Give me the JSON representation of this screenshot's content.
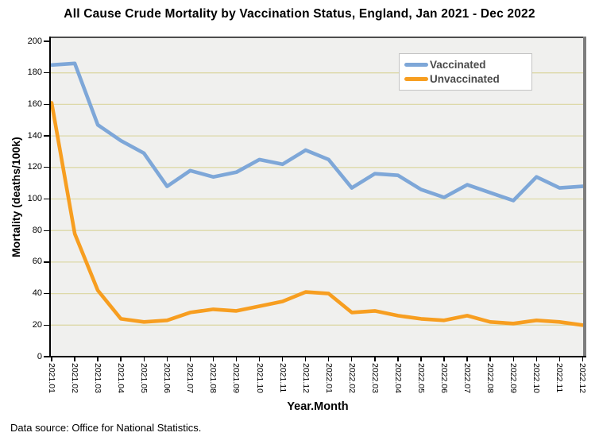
{
  "title": "All Cause Crude Mortality by Vaccination Status, England, Jan 2021 - Dec 2022",
  "footnote": "Data source: Office for National Statistics.",
  "colors": {
    "plot_background": "#f0f0ee",
    "gridline": "#ddd9a8",
    "frame_top": "#4d4d4d",
    "frame_right": "#7d7d7d",
    "axis": "#000000",
    "legend_text": "#4a4a4a"
  },
  "chart_data": {
    "type": "line",
    "title": "All Cause Crude Mortality by Vaccination Status, England, Jan 2021 - Dec 2022",
    "xlabel": "Year.Month",
    "ylabel": "Mortality (deaths/100k)",
    "ylim": [
      0,
      200
    ],
    "ytick_step": 20,
    "ytick_labels": [
      "0",
      "20",
      "40",
      "60",
      "80",
      "100",
      "120",
      "140",
      "160",
      "180",
      "200"
    ],
    "grid": "horizontal",
    "legend_position": "top-right-inside",
    "categories": [
      "2021.01",
      "2021.02",
      "2021.03",
      "2021.04",
      "2021.05",
      "2021.06",
      "2021.07",
      "2021.08",
      "2021.09",
      "2021.10",
      "2021.11",
      "2021.12",
      "2022.01",
      "2022.02",
      "2022.03",
      "2022.04",
      "2022.05",
      "2022.06",
      "2022.07",
      "2022.08",
      "2022.09",
      "2022.10",
      "2022.11",
      "2022.12"
    ],
    "series": [
      {
        "name": "Vaccinated",
        "color": "#7ea7d8",
        "values": [
          185,
          186,
          147,
          137,
          129,
          108,
          118,
          114,
          117,
          125,
          122,
          131,
          125,
          107,
          116,
          115,
          106,
          101,
          109,
          104,
          99,
          114,
          107,
          108
        ]
      },
      {
        "name": "Unvaccinated",
        "color": "#f79e20",
        "values": [
          161,
          78,
          42,
          24,
          22,
          23,
          28,
          30,
          29,
          32,
          35,
          41,
          40,
          28,
          29,
          26,
          24,
          23,
          26,
          22,
          21,
          23,
          22,
          20
        ]
      }
    ]
  }
}
